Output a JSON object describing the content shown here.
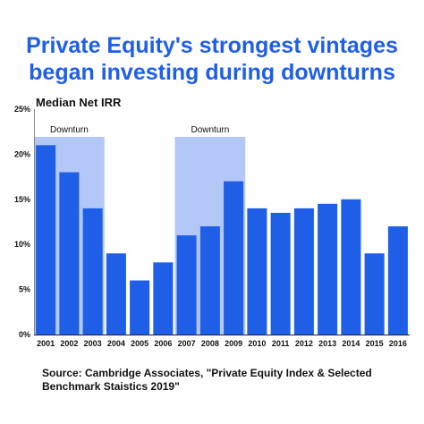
{
  "title": {
    "line1": "Private Equity's strongest vintages",
    "line2": "began investing during downturns"
  },
  "source": {
    "line1": "Source: Cambridge Associates, \"Private Equity Index & Selected",
    "line2": "Benchmark Staistics 2019\""
  },
  "colors": {
    "bar": "#1f5fe8",
    "shade": "#b3c8f7",
    "title": "#1f5fe8"
  },
  "chart_data": {
    "type": "bar",
    "title": "Private Equity's strongest vintages began investing during downturns",
    "ylabel": "Median Net IRR",
    "xlabel": "",
    "categories": [
      "2001",
      "2002",
      "2003",
      "2004",
      "2005",
      "2006",
      "2007",
      "2008",
      "2009",
      "2010",
      "2011",
      "2012",
      "2013",
      "2014",
      "2015",
      "2016"
    ],
    "values": [
      21,
      18,
      14,
      9,
      6,
      8,
      11,
      12,
      17,
      14,
      13.5,
      14,
      14.5,
      15,
      9,
      12
    ],
    "ylim": [
      0,
      25
    ],
    "yticks": [
      "0%",
      "5%",
      "10%",
      "15%",
      "20%",
      "25%"
    ],
    "ytick_values": [
      0,
      5,
      10,
      15,
      20,
      25
    ],
    "grid": false,
    "annotations": [
      {
        "label": "Downturn",
        "from": "2001",
        "to": "2003"
      },
      {
        "label": "Downturn",
        "from": "2007",
        "to": "2009"
      }
    ]
  }
}
